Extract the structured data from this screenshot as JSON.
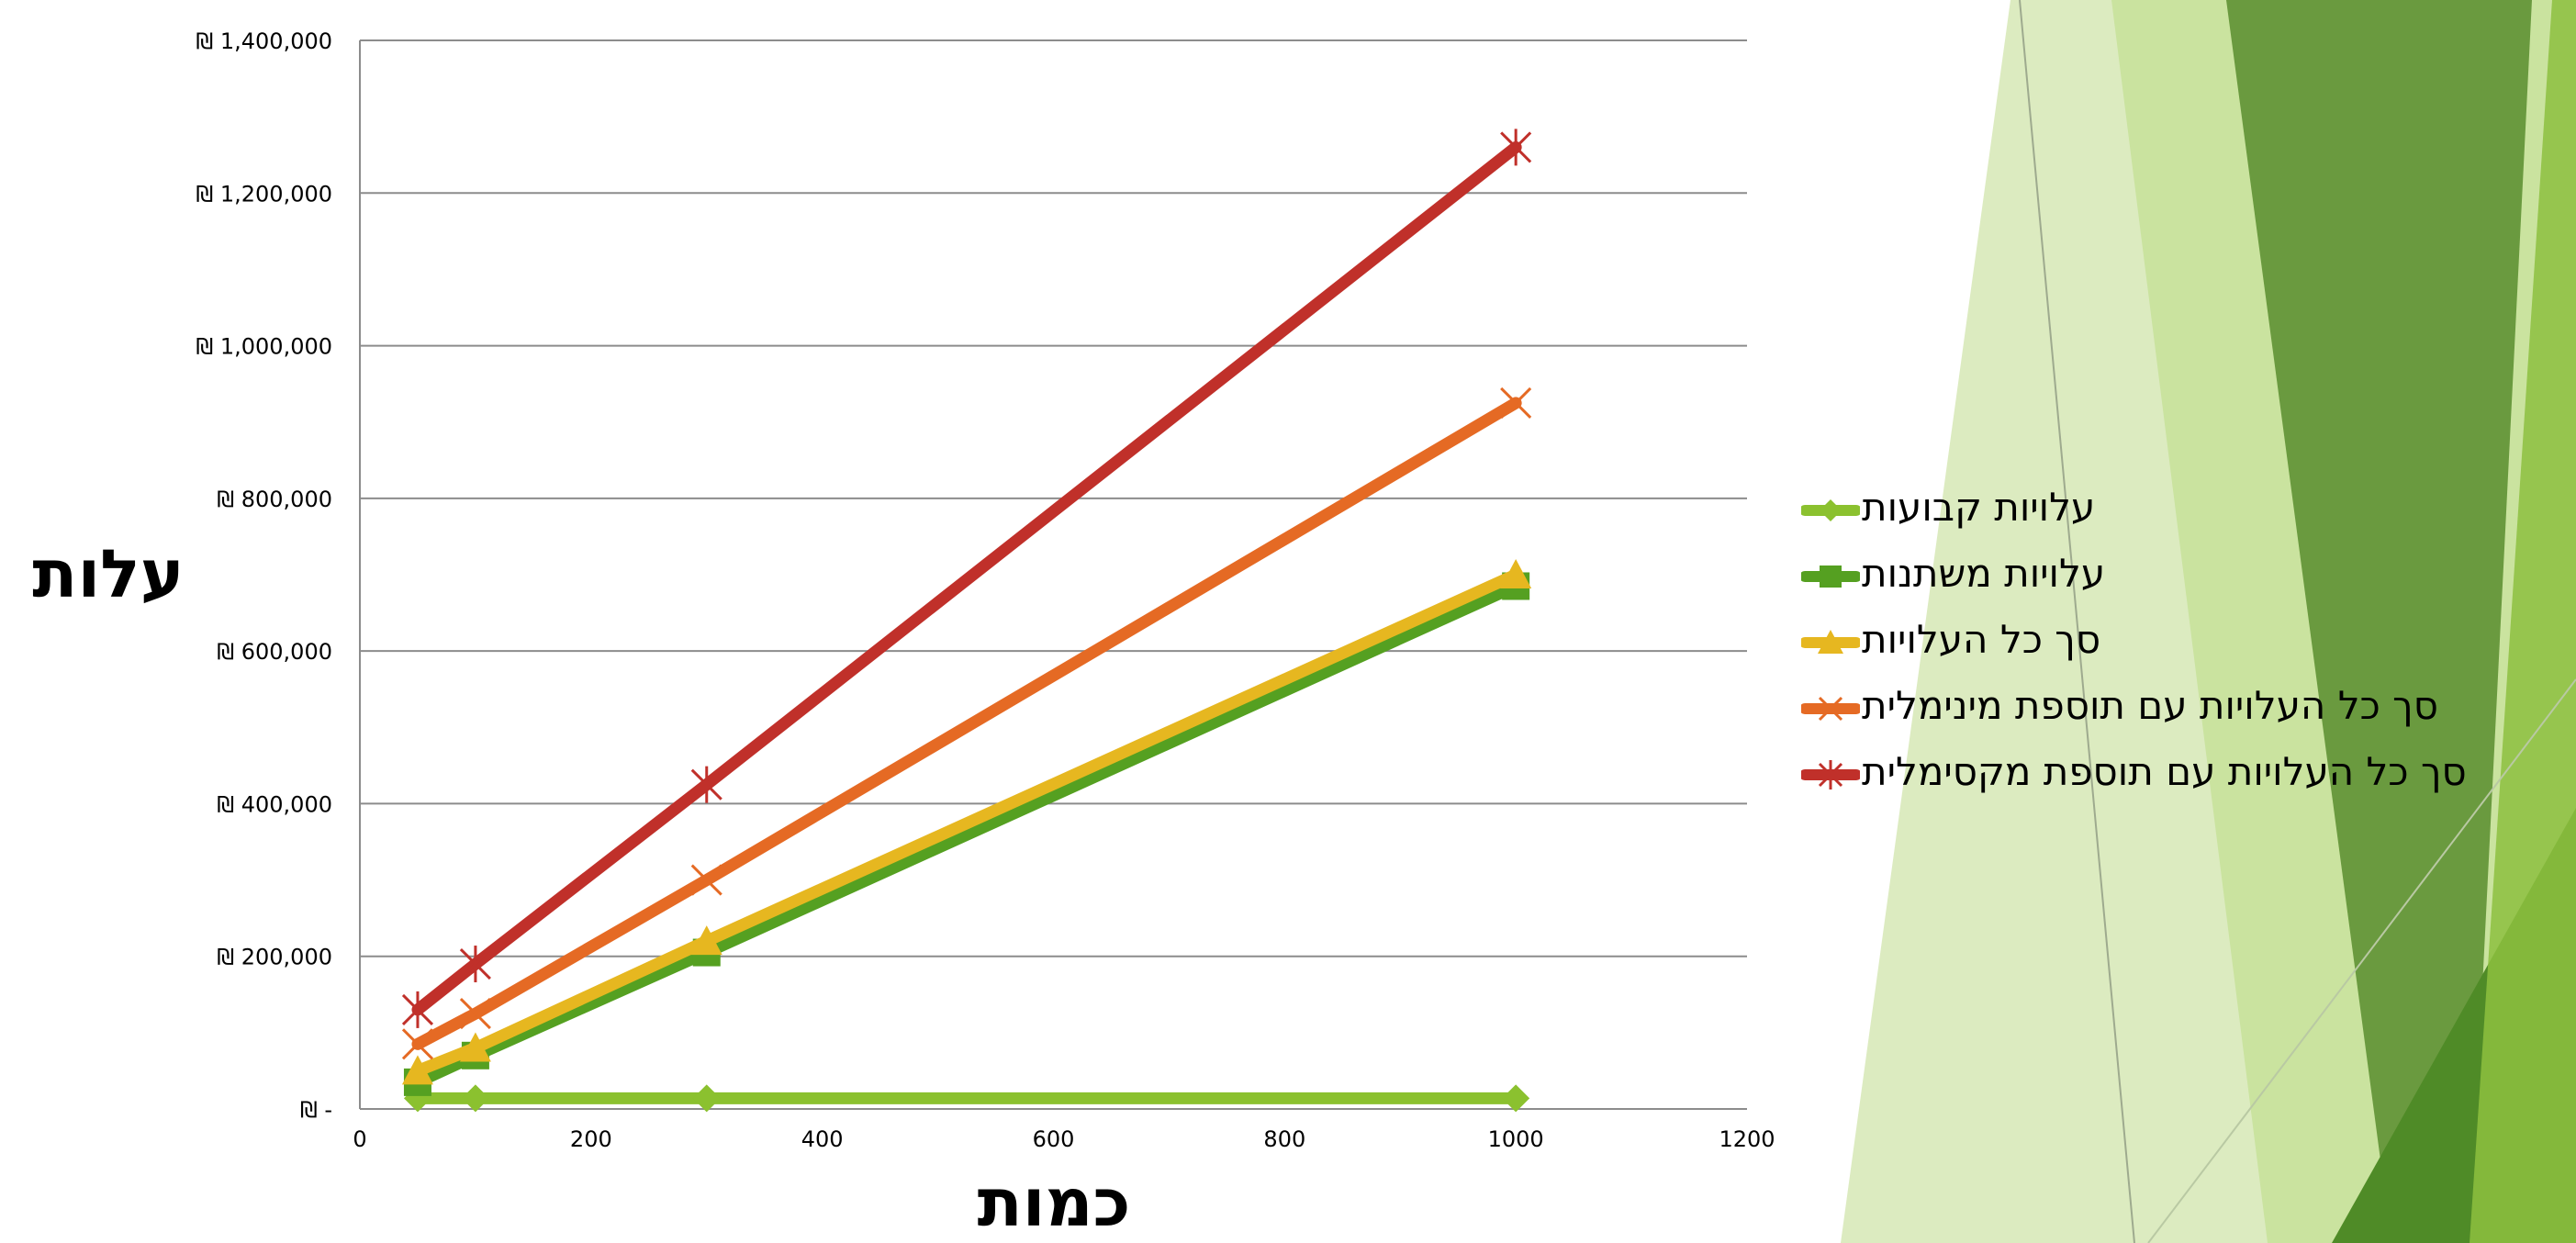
{
  "chart_data": {
    "type": "line",
    "title": "",
    "xlabel": "כמות",
    "ylabel": "עלות",
    "x": [
      50,
      100,
      300,
      1000
    ],
    "xlim": [
      0,
      1200
    ],
    "ylim": [
      0,
      1400000
    ],
    "x_ticks": [
      "0",
      "200",
      "400",
      "600",
      "800",
      "1000",
      "1200"
    ],
    "y_ticks": [
      "₪ -",
      "₪ 200,000",
      "₪ 400,000",
      "₪ 600,000",
      "₪ 800,000",
      "₪ 1,000,000",
      "₪ 1,200,000",
      "₪ 1,400,000"
    ],
    "grid": "horizontal",
    "legend_position": "right",
    "series": [
      {
        "name": "עלויות קבועות",
        "color": "#8BC12F",
        "marker": "diamond",
        "values": [
          14000,
          14000,
          14000,
          14000
        ]
      },
      {
        "name": "עלויות משתנות",
        "color": "#55A021",
        "marker": "square",
        "values": [
          35000,
          70000,
          205000,
          685000
        ]
      },
      {
        "name": "סך כל העלויות",
        "color": "#E6B720",
        "marker": "triangle",
        "values": [
          50000,
          80000,
          220000,
          700000
        ]
      },
      {
        "name": "סך כל העלויות עם תוספת מינימלית",
        "color": "#E56A24",
        "marker": "x",
        "values": [
          85000,
          125000,
          300000,
          925000
        ]
      },
      {
        "name": "סך כל העלויות עם תוספת מקסימלית",
        "color": "#C0302A",
        "marker": "star",
        "values": [
          130000,
          190000,
          425000,
          1260000
        ]
      }
    ]
  }
}
